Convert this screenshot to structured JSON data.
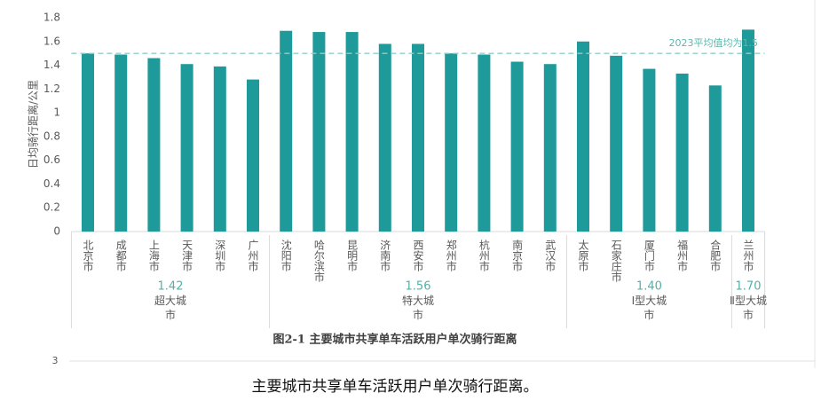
{
  "chart_data": {
    "type": "bar",
    "y_label": "日均骑行距离/公里",
    "ylim": [
      0,
      1.8
    ],
    "yticks": [
      0,
      0.2,
      0.4,
      0.6,
      0.8,
      1,
      1.2,
      1.4,
      1.6,
      1.8
    ],
    "color": "#1f9a9b",
    "reference_line": {
      "value": 1.5,
      "label": "2023平均值均为1.5",
      "color": "#8fcfc7"
    },
    "groups": [
      {
        "name": "超大城市",
        "average": 1.42,
        "categories": [
          "北京市",
          "成都市",
          "上海市",
          "天津市",
          "深圳市",
          "广州市"
        ],
        "values": [
          1.5,
          1.49,
          1.46,
          1.41,
          1.39,
          1.28
        ]
      },
      {
        "name": "特大城市",
        "average": 1.56,
        "categories": [
          "沈阳市",
          "哈尔滨市",
          "昆明市",
          "济南市",
          "西安市",
          "郑州市",
          "杭州市",
          "南京市",
          "武汉市"
        ],
        "values": [
          1.69,
          1.68,
          1.68,
          1.58,
          1.58,
          1.5,
          1.49,
          1.43,
          1.41
        ]
      },
      {
        "name": "Ⅰ型大城市",
        "average": 1.4,
        "average_label": "1.40",
        "categories": [
          "太原市",
          "石家庄市",
          "厦门市",
          "福州市",
          "合肥市"
        ],
        "values": [
          1.6,
          1.48,
          1.37,
          1.33,
          1.23
        ]
      },
      {
        "name": "Ⅱ型大城市",
        "average": 1.7,
        "average_label": "1.70",
        "categories": [
          "兰州市"
        ],
        "values": [
          1.7
        ]
      }
    ],
    "caption": "图2-1 主要城市共享单车活跃用户单次骑行距离"
  },
  "page_number": "3",
  "body_text": "主要城市共享单车活跃用户单次骑行距离。"
}
